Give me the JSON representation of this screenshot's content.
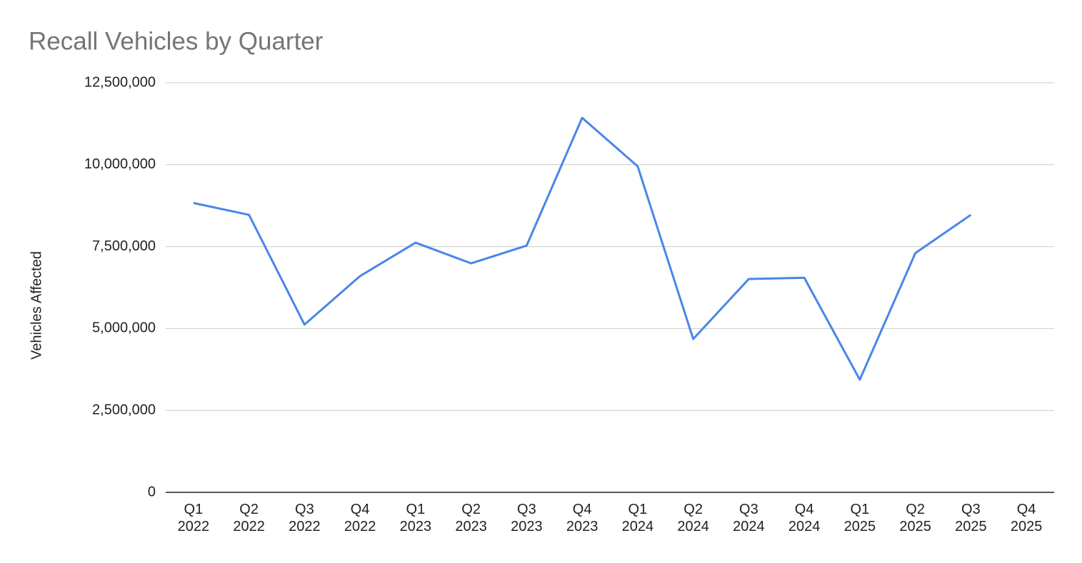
{
  "chart_data": {
    "type": "line",
    "title": "Recall Vehicles by Quarter",
    "y_label": "Vehicles Affected",
    "categories": [
      "Q1\n2022",
      "Q2\n2022",
      "Q3\n2022",
      "Q4\n2022",
      "Q1\n2023",
      "Q2\n2023",
      "Q3\n2023",
      "Q4\n2023",
      "Q1\n2024",
      "Q2\n2024",
      "Q3\n2024",
      "Q4\n2024",
      "Q1\n2025",
      "Q2\n2025",
      "Q3\n2025",
      "Q4\n2025"
    ],
    "series": [
      {
        "name": "Vehicles Affected",
        "color": "#4a86e8",
        "values": [
          8830000,
          8470000,
          5120000,
          6600000,
          7620000,
          6990000,
          7530000,
          11430000,
          9950000,
          4680000,
          6510000,
          6550000,
          3440000,
          7300000,
          8470000,
          null
        ]
      }
    ],
    "ylim": [
      0,
      12500000
    ],
    "yticks": [
      0,
      {
        "value": 2500000,
        "label": "2,500,000"
      },
      {
        "value": 5000000,
        "label": "5,000,000"
      },
      {
        "value": 7500000,
        "label": "7,500,000"
      },
      {
        "value": 10000000,
        "label": "10,000,000"
      },
      {
        "value": 12500000,
        "label": "12,500,000"
      }
    ],
    "grid": true
  }
}
